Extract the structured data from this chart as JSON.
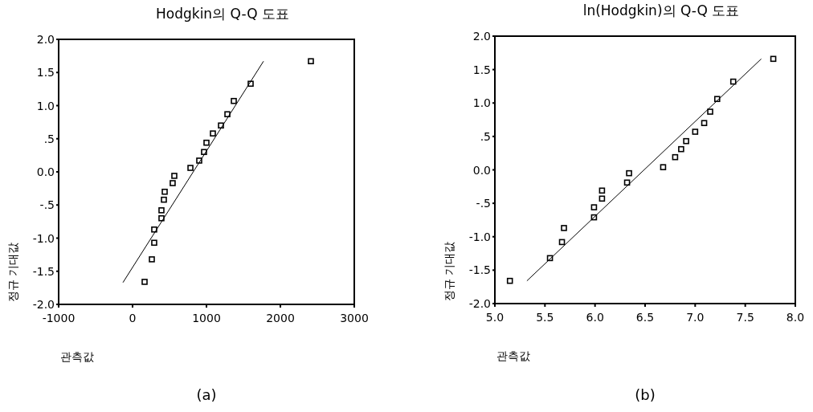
{
  "chart_data": [
    {
      "type": "scatter",
      "title": "Hodgkin의  Q-Q 도표",
      "xlabel": "관측값",
      "ylabel": "정규 기대값",
      "annotations": [
        "(a)"
      ],
      "grid": false,
      "xlim": [
        -1000,
        3000
      ],
      "xticks": [
        -1000,
        0,
        1000,
        2000,
        3000
      ],
      "ylim": [
        -2,
        2
      ],
      "yticks": [
        {
          "value": 2,
          "label": "2.0"
        },
        {
          "value": 1.5,
          "label": "1.5"
        },
        {
          "value": 1,
          "label": "1.0"
        },
        {
          "value": 0.5,
          "label": ".5"
        },
        {
          "value": 0,
          "label": "0.0"
        },
        {
          "value": -0.5,
          "label": "-.5"
        },
        {
          "value": -1,
          "label": "-1.0"
        },
        {
          "value": -1.5,
          "label": "-1.5"
        },
        {
          "value": -2,
          "label": "-2.0"
        }
      ],
      "series": [
        {
          "marker": "square",
          "color": "#000000",
          "x": [
            2413,
            1598,
            1370,
            1283,
            1196,
            1087,
            1000,
            967,
            902,
            783,
            565,
            543,
            435,
            424,
            391,
            391,
            293,
            293,
            261,
            163
          ],
          "values": [
            1.67,
            1.33,
            1.07,
            0.87,
            0.7,
            0.58,
            0.44,
            0.3,
            0.17,
            0.06,
            -0.06,
            -0.17,
            -0.3,
            -0.42,
            -0.58,
            -0.7,
            -0.87,
            -1.07,
            -1.32,
            -1.66
          ]
        },
        {
          "type": "line",
          "color": "#000000",
          "x": [
            -130,
            1772
          ],
          "values": [
            -1.67,
            1.67
          ]
        }
      ]
    },
    {
      "type": "scatter",
      "title": "ln(Hodgkin)의 Q-Q 도표",
      "xlabel": "관측값",
      "ylabel": "정규 기대값",
      "annotations": [
        "(b)"
      ],
      "grid": false,
      "xlim": [
        5,
        8
      ],
      "xticks": [
        {
          "value": 5,
          "label": "5.0"
        },
        {
          "value": 5.5,
          "label": "5.5"
        },
        {
          "value": 6,
          "label": "6.0"
        },
        {
          "value": 6.5,
          "label": "6.5"
        },
        {
          "value": 7,
          "label": "7.0"
        },
        {
          "value": 7.5,
          "label": "7.5"
        },
        {
          "value": 8,
          "label": "8.0"
        }
      ],
      "ylim": [
        -2,
        2
      ],
      "yticks": [
        {
          "value": 2,
          "label": "2.0"
        },
        {
          "value": 1.5,
          "label": "1.5"
        },
        {
          "value": 1,
          "label": "1.0"
        },
        {
          "value": 0.5,
          "label": ".5"
        },
        {
          "value": 0,
          "label": "0.0"
        },
        {
          "value": -0.5,
          "label": "-.5"
        },
        {
          "value": -1,
          "label": "-1.0"
        },
        {
          "value": -1.5,
          "label": "-1.5"
        },
        {
          "value": -2,
          "label": "-2.0"
        }
      ],
      "series": [
        {
          "marker": "square",
          "color": "#000000",
          "x": [
            7.78,
            7.38,
            7.22,
            7.15,
            7.09,
            7.0,
            6.91,
            6.86,
            6.8,
            6.68,
            6.34,
            6.32,
            6.07,
            6.07,
            5.99,
            5.99,
            5.69,
            5.67,
            5.55,
            5.15
          ],
          "values": [
            1.66,
            1.32,
            1.06,
            0.87,
            0.7,
            0.57,
            0.43,
            0.31,
            0.19,
            0.04,
            -0.05,
            -0.19,
            -0.31,
            -0.43,
            -0.56,
            -0.71,
            -0.87,
            -1.08,
            -1.32,
            -1.66
          ]
        },
        {
          "type": "line",
          "color": "#000000",
          "x": [
            5.32,
            7.66
          ],
          "values": [
            -1.66,
            1.66
          ]
        }
      ]
    }
  ]
}
